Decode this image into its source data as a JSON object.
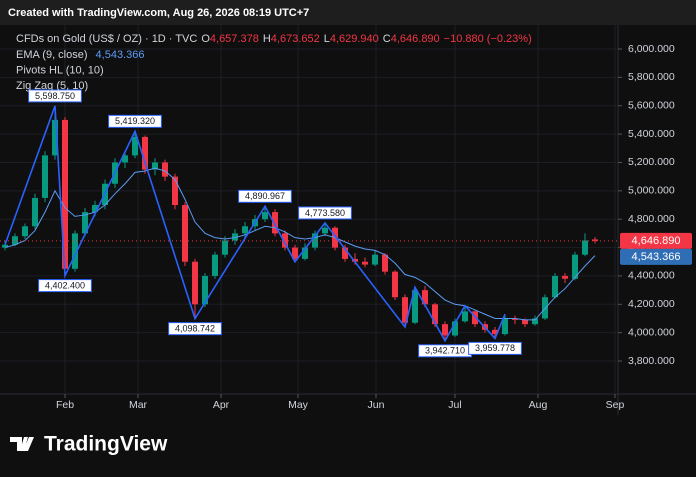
{
  "header": {
    "caption": "Created with TradingView.com, Aug 26, 2026 08:19 UTC+7",
    "brand": "TradingView"
  },
  "chart_data": {
    "type": "candlestick",
    "title": "CFDs on Gold (US$ / OZ) · 1D · TVC",
    "ohlc_legend": [
      {
        "key": "O",
        "label": "4,657.378"
      },
      {
        "key": "H",
        "label": "4,673.652"
      },
      {
        "key": "L",
        "label": "4,629.940"
      },
      {
        "key": "C",
        "label": "4,646.890"
      }
    ],
    "change_label": "−10.880 (−0.23%)",
    "indicators": [
      {
        "name": "EMA (9, close)",
        "value_label": "4,543.366"
      },
      {
        "name": "Pivots HL (10, 10)"
      },
      {
        "name": "Zig Zag (5, 10)"
      }
    ],
    "open": [
      4600,
      4620,
      4680,
      4750,
      4950,
      5250,
      5500,
      4450,
      4700,
      4850,
      4900,
      5050,
      5200,
      5250,
      5380,
      5150,
      5200,
      5100,
      4900,
      4500,
      4200,
      4400,
      4550,
      4650,
      4700,
      4750,
      4800,
      4850,
      4700,
      4600,
      4520,
      4600,
      4700,
      4740,
      4600,
      4520,
      4500,
      4480,
      4550,
      4430,
      4250,
      4070,
      4300,
      4200,
      4060,
      3980,
      4080,
      4150,
      4060,
      4020,
      3990,
      4100,
      4090,
      4060,
      4100,
      4250,
      4400,
      4380,
      4550,
      4657.378
    ],
    "high": [
      4650,
      4700,
      4770,
      4980,
      5280,
      5598.75,
      5520,
      4720,
      4880,
      4930,
      5080,
      5230,
      5280,
      5419.32,
      5390,
      5230,
      5220,
      5120,
      4920,
      4520,
      4420,
      4570,
      4680,
      4730,
      4780,
      4830,
      4890.967,
      4870,
      4720,
      4620,
      4630,
      4720,
      4773.58,
      4750,
      4620,
      4560,
      4530,
      4580,
      4560,
      4440,
      4270,
      4320,
      4330,
      4210,
      4080,
      4100,
      4190,
      4160,
      4080,
      4040,
      4130,
      4120,
      4100,
      4120,
      4270,
      4420,
      4420,
      4570,
      4700,
      4673.652
    ],
    "low": [
      4580,
      4610,
      4660,
      4730,
      4920,
      5220,
      4402.4,
      4430,
      4680,
      4820,
      4870,
      5020,
      5160,
      5230,
      5120,
      5110,
      5070,
      4870,
      4470,
      4098.742,
      4180,
      4380,
      4530,
      4620,
      4670,
      4720,
      4780,
      4680,
      4580,
      4500,
      4510,
      4580,
      4680,
      4580,
      4500,
      4480,
      4460,
      4470,
      4410,
      4230,
      4040,
      4060,
      4180,
      4040,
      3942.71,
      3970,
      4070,
      4040,
      4000,
      3959.778,
      3980,
      4060,
      4040,
      4050,
      4090,
      4240,
      4350,
      4370,
      4540,
      4629.94
    ],
    "close": [
      4620,
      4680,
      4750,
      4950,
      5250,
      5500,
      4450,
      4700,
      4850,
      4900,
      5050,
      5200,
      5250,
      5380,
      5150,
      5200,
      5100,
      4900,
      4500,
      4200,
      4400,
      4550,
      4650,
      4700,
      4750,
      4800,
      4850,
      4700,
      4600,
      4520,
      4600,
      4700,
      4740,
      4600,
      4520,
      4500,
      4480,
      4550,
      4430,
      4250,
      4070,
      4300,
      4200,
      4060,
      3980,
      4080,
      4150,
      4060,
      4020,
      3990,
      4100,
      4090,
      4060,
      4100,
      4250,
      4400,
      4380,
      4550,
      4650,
      4646.89
    ],
    "up_color": "#089981",
    "down_color": "#f23645",
    "last_price_label": "4,646.890",
    "ema": {
      "color": "#5b9cf6",
      "last_label": "4,543.366",
      "values": [
        4600,
        4620,
        4650,
        4720,
        4850,
        5000,
        4880,
        4820,
        4830,
        4850,
        4900,
        4980,
        5050,
        5130,
        5140,
        5160,
        5140,
        5080,
        4940,
        4780,
        4700,
        4670,
        4660,
        4670,
        4690,
        4720,
        4750,
        4740,
        4710,
        4670,
        4660,
        4670,
        4690,
        4670,
        4640,
        4610,
        4590,
        4580,
        4550,
        4490,
        4410,
        4390,
        4350,
        4290,
        4230,
        4200,
        4190,
        4160,
        4130,
        4100,
        4100,
        4100,
        4090,
        4090,
        4170,
        4250,
        4310,
        4390,
        4470,
        4543.366
      ]
    },
    "zigzag": {
      "color": "#2962ff",
      "x": [
        0,
        5,
        6,
        13,
        19,
        26,
        29,
        32,
        40,
        41,
        44,
        46,
        49,
        50
      ],
      "values": [
        4620,
        5598.75,
        4402.4,
        5419.32,
        4098.742,
        4890.967,
        4500,
        4773.58,
        4040,
        4320,
        3942.71,
        4190,
        3959.778,
        4130
      ],
      "value_labels": [
        null,
        "5,598.750",
        "4,402.400",
        "5,419.320",
        "4,098.742",
        "4,890.967",
        null,
        "4,773.580",
        null,
        null,
        "3,942.710",
        null,
        "3,959.778",
        null
      ]
    },
    "xlim": [
      -0.5,
      61.3
    ],
    "xticks": [
      {
        "value": 6,
        "label": "Feb"
      },
      {
        "value": 13.3,
        "label": "Mar"
      },
      {
        "value": 21.6,
        "label": "Apr"
      },
      {
        "value": 29.3,
        "label": "May"
      },
      {
        "value": 37.1,
        "label": "Jun"
      },
      {
        "value": 45,
        "label": "Jul"
      },
      {
        "value": 53.3,
        "label": "Aug"
      },
      {
        "value": 61,
        "label": "Sep"
      }
    ],
    "ylim": [
      3624,
      6148
    ],
    "yticks": [
      {
        "value": 3800,
        "label": "3,800.000"
      },
      {
        "value": 4000,
        "label": "4,000.000"
      },
      {
        "value": 4200,
        "label": "4,200.000"
      },
      {
        "value": 4400,
        "label": "4,400.000"
      },
      {
        "value": 4600,
        "label": "4,600.000"
      },
      {
        "value": 4800,
        "label": "4,800.000"
      },
      {
        "value": 5000,
        "label": "5,000.000"
      },
      {
        "value": 5200,
        "label": "5,200.000"
      },
      {
        "value": 5400,
        "label": "5,400.000"
      },
      {
        "value": 5600,
        "label": "5,600.000"
      },
      {
        "value": 5800,
        "label": "5,800.000"
      },
      {
        "value": 6000,
        "label": "6,000.000"
      }
    ],
    "grid": true
  }
}
